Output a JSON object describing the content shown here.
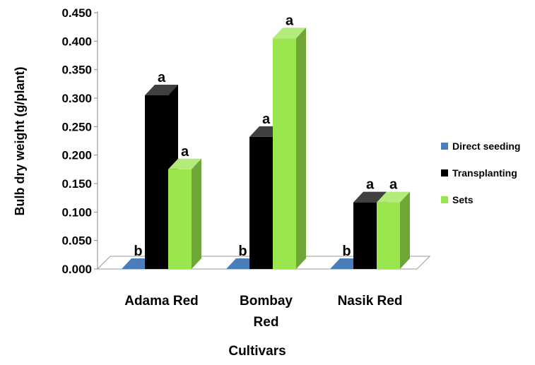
{
  "chart_data": {
    "type": "bar",
    "title": "",
    "xlabel": "Cultivars",
    "ylabel": "Bulb dry weight (g/plant)",
    "ylim": [
      0,
      0.45
    ],
    "y_ticks": [
      "0.000",
      "0.050",
      "0.100",
      "0.150",
      "0.200",
      "0.250",
      "0.300",
      "0.350",
      "0.400",
      "0.450"
    ],
    "grid": false,
    "legend_position": "right",
    "categories": [
      {
        "line1": "Adama Red",
        "line2": ""
      },
      {
        "line1": "Bombay",
        "line2": "Red"
      },
      {
        "line1": "Nasik Red",
        "line2": ""
      }
    ],
    "series": [
      {
        "name": "Direct seeding",
        "color": "#4a7ebb",
        "values": [
          0.0,
          0.0,
          0.0
        ],
        "labels": [
          "b",
          "b",
          "b"
        ]
      },
      {
        "name": "Transplanting",
        "color": "#000000",
        "values": [
          0.305,
          0.232,
          0.117
        ],
        "labels": [
          "a",
          "a",
          "a"
        ]
      },
      {
        "name": "Sets",
        "color": "#99e64d",
        "values": [
          0.175,
          0.405,
          0.117
        ],
        "labels": [
          "a",
          "a",
          "a"
        ]
      }
    ]
  }
}
